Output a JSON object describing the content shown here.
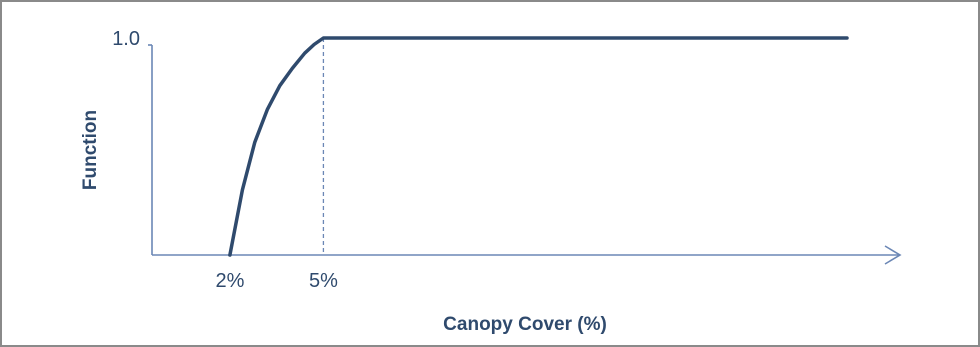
{
  "chart_data": {
    "type": "line",
    "xlabel": "Canopy Cover (%)",
    "ylabel": "Function",
    "y_tick_labels": [
      {
        "value": 1.0,
        "label": "1.0"
      }
    ],
    "x_tick_labels": [
      {
        "value": 2,
        "label": "2%"
      },
      {
        "value": 5,
        "label": "5%"
      }
    ],
    "xlim": [
      -0.5,
      23.5
    ],
    "ylim": [
      0,
      1.0
    ],
    "series": [
      {
        "points": [
          {
            "x": 2.0,
            "y": 0.0
          },
          {
            "x": 2.4,
            "y": 0.3
          },
          {
            "x": 2.8,
            "y": 0.52
          },
          {
            "x": 3.2,
            "y": 0.67
          },
          {
            "x": 3.6,
            "y": 0.78
          },
          {
            "x": 4.0,
            "y": 0.86
          },
          {
            "x": 4.4,
            "y": 0.93
          },
          {
            "x": 4.7,
            "y": 0.97
          },
          {
            "x": 5.0,
            "y": 1.0
          },
          {
            "x": 21.8,
            "y": 1.0
          }
        ]
      }
    ],
    "reference_lines": [
      {
        "x": 5.0,
        "style": "dashed"
      }
    ],
    "grid": false,
    "colors": {
      "line": "#2f4a6d",
      "axis": "#6b87b5",
      "dashed": "#6b87b5",
      "text": "#2f4a6d",
      "border": "#8a8a8a"
    }
  }
}
